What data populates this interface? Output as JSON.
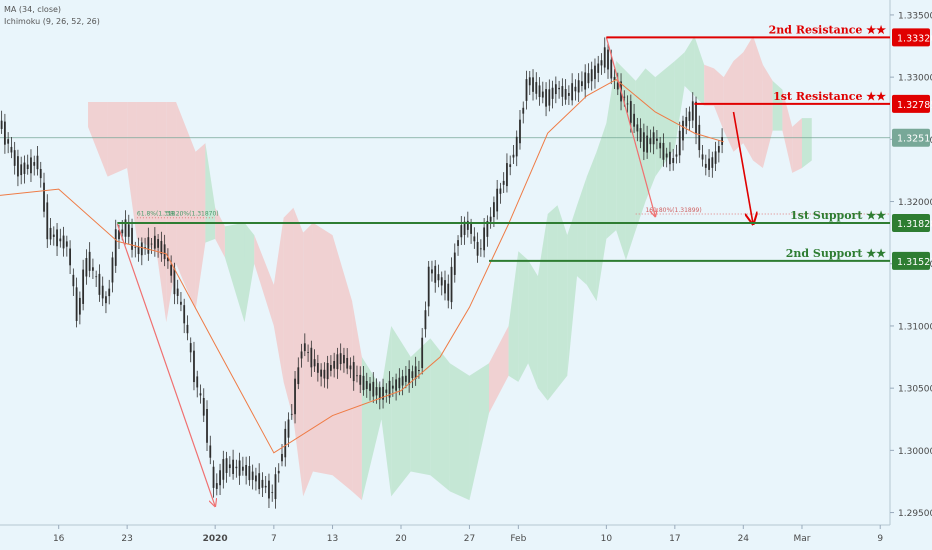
{
  "indicators": [
    "MA (34, close)",
    "Ichimoku (9, 26, 52, 26)"
  ],
  "colors": {
    "background": "#e9f5fb",
    "resistance": "#e00000",
    "support": "#2e7d32",
    "current": "#78a898",
    "candle": "#2e2e2e",
    "ma": "#ef7b45",
    "cloud_bear": "#f2c4c4",
    "cloud_bull": "#b8e2c8",
    "arrow": "#f07070"
  },
  "levels": [
    {
      "label": "2nd Resistance ★★",
      "price_label": "1.33320",
      "value": 1.3332,
      "kind": "resistance",
      "x_start": "2020-02-10"
    },
    {
      "label": "1st Resistance ★★",
      "price_label": "1.32785",
      "value": 1.32785,
      "kind": "resistance",
      "x_start": "2020-02-19"
    },
    {
      "label": "1st Support ★★",
      "price_label": "1.31828",
      "value": 1.31828,
      "kind": "support",
      "x_start": "2019-12-22"
    },
    {
      "label": "2nd Support ★★",
      "price_label": "1.31523",
      "value": 1.31523,
      "kind": "support",
      "x_start": "2020-01-29"
    }
  ],
  "current_price": {
    "label": "1.32513",
    "value": 1.32513
  },
  "fib_labels": [
    {
      "text": "61.8%(1.318...",
      "x": "2019-12-24",
      "y": 1.3187
    },
    {
      "text": "38.20%(1.31870)",
      "x": "2019-12-27",
      "y": 1.3187
    },
    {
      "text": "161.80%(1.31899)",
      "x": "2020-02-14",
      "y": 1.319
    }
  ],
  "chart_data": {
    "type": "line",
    "title": "",
    "xlabel": "",
    "ylabel": "",
    "ylim": [
      1.294,
      1.3362
    ],
    "xlim": [
      "2019-12-10",
      "2020-03-10"
    ],
    "x_tick_labels": [
      {
        "label": "16",
        "x": "2019-12-16",
        "bold": false
      },
      {
        "label": "23",
        "x": "2019-12-23",
        "bold": false
      },
      {
        "label": "2020",
        "x": "2020-01-01",
        "bold": true
      },
      {
        "label": "7",
        "x": "2020-01-07",
        "bold": false
      },
      {
        "label": "13",
        "x": "2020-01-13",
        "bold": false
      },
      {
        "label": "20",
        "x": "2020-01-20",
        "bold": false
      },
      {
        "label": "27",
        "x": "2020-01-27",
        "bold": false
      },
      {
        "label": "Feb",
        "x": "2020-02-01",
        "bold": false
      },
      {
        "label": "10",
        "x": "2020-02-10",
        "bold": false
      },
      {
        "label": "17",
        "x": "2020-02-17",
        "bold": false
      },
      {
        "label": "24",
        "x": "2020-02-24",
        "bold": false
      },
      {
        "label": "Mar",
        "x": "2020-03-01",
        "bold": false
      },
      {
        "label": "9",
        "x": "2020-03-09",
        "bold": false
      }
    ],
    "y_tick_labels": [
      "1.33500",
      "1.33000",
      "1.32500",
      "1.32000",
      "1.31500",
      "1.31000",
      "1.30500",
      "1.30000",
      "1.29500"
    ],
    "y_ticks": [
      1.335,
      1.33,
      1.325,
      1.32,
      1.315,
      1.31,
      1.305,
      1.3,
      1.295
    ],
    "price_path": [
      {
        "x": "2019-12-10",
        "y": 1.3265
      },
      {
        "x": "2019-12-12",
        "y": 1.3225
      },
      {
        "x": "2019-12-14",
        "y": 1.3232
      },
      {
        "x": "2019-12-15",
        "y": 1.3175
      },
      {
        "x": "2019-12-17",
        "y": 1.3165
      },
      {
        "x": "2019-12-18",
        "y": 1.3108
      },
      {
        "x": "2019-12-19",
        "y": 1.3155
      },
      {
        "x": "2019-12-21",
        "y": 1.3118
      },
      {
        "x": "2019-12-22",
        "y": 1.3172
      },
      {
        "x": "2019-12-23",
        "y": 1.318
      },
      {
        "x": "2019-12-24",
        "y": 1.316
      },
      {
        "x": "2019-12-26",
        "y": 1.3168
      },
      {
        "x": "2019-12-27",
        "y": 1.3158
      },
      {
        "x": "2019-12-29",
        "y": 1.3105
      },
      {
        "x": "2019-12-30",
        "y": 1.306
      },
      {
        "x": "2019-12-31",
        "y": 1.303
      },
      {
        "x": "2020-01-01",
        "y": 1.2968
      },
      {
        "x": "2020-01-02",
        "y": 1.2988
      },
      {
        "x": "2020-01-04",
        "y": 1.2985
      },
      {
        "x": "2020-01-06",
        "y": 1.2972
      },
      {
        "x": "2020-01-07",
        "y": 1.2965
      },
      {
        "x": "2020-01-09",
        "y": 1.3035
      },
      {
        "x": "2020-01-10",
        "y": 1.3085
      },
      {
        "x": "2020-01-12",
        "y": 1.306
      },
      {
        "x": "2020-01-14",
        "y": 1.3075
      },
      {
        "x": "2020-01-16",
        "y": 1.3055
      },
      {
        "x": "2020-01-18",
        "y": 1.3045
      },
      {
        "x": "2020-01-20",
        "y": 1.3055
      },
      {
        "x": "2020-01-22",
        "y": 1.3065
      },
      {
        "x": "2020-01-23",
        "y": 1.3145
      },
      {
        "x": "2020-01-24",
        "y": 1.3138
      },
      {
        "x": "2020-01-25",
        "y": 1.3125
      },
      {
        "x": "2020-01-26",
        "y": 1.3175
      },
      {
        "x": "2020-01-27",
        "y": 1.3182
      },
      {
        "x": "2020-01-28",
        "y": 1.3158
      },
      {
        "x": "2020-01-29",
        "y": 1.3182
      },
      {
        "x": "2020-01-30",
        "y": 1.3205
      },
      {
        "x": "2020-01-31",
        "y": 1.3225
      },
      {
        "x": "2020-02-01",
        "y": 1.3248
      },
      {
        "x": "2020-02-02",
        "y": 1.3298
      },
      {
        "x": "2020-02-03",
        "y": 1.329
      },
      {
        "x": "2020-02-04",
        "y": 1.3282
      },
      {
        "x": "2020-02-05",
        "y": 1.3292
      },
      {
        "x": "2020-02-06",
        "y": 1.3285
      },
      {
        "x": "2020-02-08",
        "y": 1.3298
      },
      {
        "x": "2020-02-09",
        "y": 1.3305
      },
      {
        "x": "2020-02-10",
        "y": 1.3318
      },
      {
        "x": "2020-02-11",
        "y": 1.3295
      },
      {
        "x": "2020-02-12",
        "y": 1.3282
      },
      {
        "x": "2020-02-13",
        "y": 1.3262
      },
      {
        "x": "2020-02-14",
        "y": 1.3245
      },
      {
        "x": "2020-02-15",
        "y": 1.3252
      },
      {
        "x": "2020-02-16",
        "y": 1.3238
      },
      {
        "x": "2020-02-17",
        "y": 1.3232
      },
      {
        "x": "2020-02-18",
        "y": 1.3262
      },
      {
        "x": "2020-02-19",
        "y": 1.3275
      },
      {
        "x": "2020-02-20",
        "y": 1.3228
      },
      {
        "x": "2020-02-21",
        "y": 1.3232
      },
      {
        "x": "2020-02-22",
        "y": 1.3252
      }
    ],
    "ma_path": [
      {
        "x": "2019-12-10",
        "y": 1.3205
      },
      {
        "x": "2019-12-16",
        "y": 1.321
      },
      {
        "x": "2019-12-22",
        "y": 1.3168
      },
      {
        "x": "2019-12-27",
        "y": 1.3158
      },
      {
        "x": "2020-01-01",
        "y": 1.3085
      },
      {
        "x": "2020-01-07",
        "y": 1.2998
      },
      {
        "x": "2020-01-13",
        "y": 1.3028
      },
      {
        "x": "2020-01-20",
        "y": 1.3048
      },
      {
        "x": "2020-01-24",
        "y": 1.3075
      },
      {
        "x": "2020-01-27",
        "y": 1.3115
      },
      {
        "x": "2020-01-31",
        "y": 1.3182
      },
      {
        "x": "2020-02-04",
        "y": 1.3255
      },
      {
        "x": "2020-02-08",
        "y": 1.3285
      },
      {
        "x": "2020-02-11",
        "y": 1.3298
      },
      {
        "x": "2020-02-15",
        "y": 1.3272
      },
      {
        "x": "2020-02-19",
        "y": 1.3255
      },
      {
        "x": "2020-02-22",
        "y": 1.3248
      }
    ],
    "projection_arrows": [
      {
        "from": {
          "x": "2019-12-22",
          "y": 1.3182
        },
        "to": {
          "x": "2020-01-01",
          "y": 1.2955
        }
      },
      {
        "from": {
          "x": "2020-02-10",
          "y": 1.3332
        },
        "to": {
          "x": "2020-02-15",
          "y": 1.3188
        }
      },
      {
        "from": {
          "x": "2020-02-23",
          "y": 1.3272
        },
        "to": {
          "x": "2020-02-25",
          "y": 1.3182
        }
      }
    ]
  }
}
